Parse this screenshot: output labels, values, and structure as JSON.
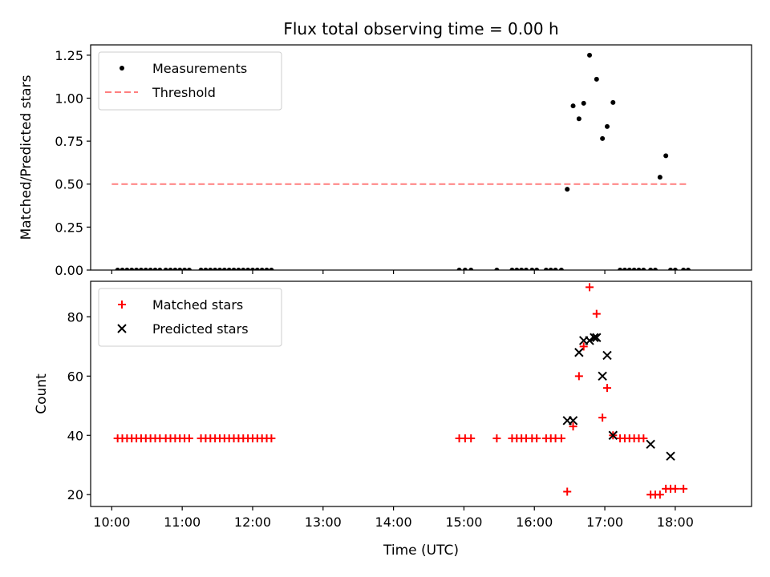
{
  "chart_data": {
    "title": "Flux total observing time = 0.00 h",
    "xlabel": "Time (UTC)",
    "x_unit": "minutes since 10:00 UTC",
    "xlim": [
      -18,
      545
    ],
    "xticks": [
      {
        "value": 0,
        "label": "10:00"
      },
      {
        "value": 60,
        "label": "11:00"
      },
      {
        "value": 120,
        "label": "12:00"
      },
      {
        "value": 180,
        "label": "13:00"
      },
      {
        "value": 240,
        "label": "14:00"
      },
      {
        "value": 300,
        "label": "15:00"
      },
      {
        "value": 360,
        "label": "16:00"
      },
      {
        "value": 420,
        "label": "17:00"
      },
      {
        "value": 480,
        "label": "18:00"
      }
    ],
    "panels": [
      {
        "type": "scatter",
        "ylabel": "Matched/Predicted stars",
        "ylim": [
          0,
          1.31
        ],
        "yticks": [
          "0.00",
          "0.25",
          "0.50",
          "0.75",
          "1.00",
          "1.25"
        ],
        "legend": "top-left",
        "series": [
          {
            "name": "Measurements",
            "marker": "dot",
            "color": "#000000",
            "x": [
              5,
              9,
              13,
              17,
              21,
              25,
              29,
              33,
              37,
              41,
              46,
              50,
              54,
              58,
              62,
              66,
              76,
              80,
              84,
              88,
              92,
              96,
              100,
              104,
              108,
              112,
              116,
              120,
              124,
              128,
              132,
              136,
              296,
              301,
              306,
              328,
              341,
              345,
              349,
              353,
              358,
              362,
              370,
              374,
              378,
              383,
              388,
              393,
              398,
              402,
              407,
              413,
              418,
              422,
              427,
              433,
              437,
              441,
              445,
              449,
              453,
              459,
              463,
              476,
              480,
              487
            ],
            "y": [
              0,
              0,
              0,
              0,
              0,
              0,
              0,
              0,
              0,
              0,
              0,
              0,
              0,
              0,
              0,
              0,
              0,
              0,
              0,
              0,
              0,
              0,
              0,
              0,
              0,
              0,
              0,
              0,
              0,
              0,
              0,
              0,
              0,
              0,
              0,
              0,
              0,
              0,
              0,
              0,
              0,
              0,
              0,
              0,
              0,
              0,
              0.47,
              0.955,
              0.88,
              0.97,
              1.25,
              1.11,
              0.765,
              0.835,
              0.975,
              0,
              0,
              0,
              0,
              0,
              0,
              0,
              0,
              0,
              0,
              0
            ]
          },
          {
            "name": "Measurements",
            "marker": "dot",
            "color": "#000000",
            "x": [
              467,
              472,
              491
            ],
            "y": [
              0.54,
              0.665,
              0
            ]
          },
          {
            "name": "Threshold",
            "type": "line",
            "dash": true,
            "color": "#ff7f7f",
            "x": [
              0,
              490
            ],
            "y": [
              0.5,
              0.5
            ]
          }
        ]
      },
      {
        "type": "scatter",
        "ylabel": "Count",
        "ylim": [
          16,
          92
        ],
        "yticks": [
          "20",
          "40",
          "60",
          "80"
        ],
        "legend": "top-left",
        "series": [
          {
            "name": "Matched stars",
            "marker": "plus",
            "color": "#ff0000",
            "x": [
              5,
              9,
              13,
              17,
              21,
              25,
              29,
              33,
              37,
              41,
              46,
              50,
              54,
              58,
              62,
              66,
              76,
              80,
              84,
              88,
              92,
              96,
              100,
              104,
              108,
              112,
              116,
              120,
              124,
              128,
              132,
              136,
              296,
              301,
              306,
              328,
              341,
              345,
              349,
              353,
              358,
              362,
              370,
              374,
              378,
              383,
              388,
              393,
              398,
              402,
              407,
              413,
              418,
              422,
              427,
              433,
              437,
              441,
              445,
              449,
              453,
              459,
              463,
              467,
              472,
              476,
              480,
              487
            ],
            "y": [
              39,
              39,
              39,
              39,
              39,
              39,
              39,
              39,
              39,
              39,
              39,
              39,
              39,
              39,
              39,
              39,
              39,
              39,
              39,
              39,
              39,
              39,
              39,
              39,
              39,
              39,
              39,
              39,
              39,
              39,
              39,
              39,
              39,
              39,
              39,
              39,
              39,
              39,
              39,
              39,
              39,
              39,
              39,
              39,
              39,
              39,
              21,
              43,
              60,
              70,
              90,
              81,
              46,
              56,
              40,
              39,
              39,
              39,
              39,
              39,
              39,
              20,
              20,
              20,
              22,
              22,
              22,
              22
            ]
          },
          {
            "name": "Predicted stars",
            "marker": "x",
            "color": "#000000",
            "x": [
              388,
              393,
              398,
              402,
              407,
              411,
              413,
              418,
              422,
              427,
              459,
              476
            ],
            "y": [
              45,
              45,
              68,
              72,
              72,
              73,
              73,
              60,
              67,
              40,
              37,
              33
            ]
          }
        ]
      }
    ]
  }
}
